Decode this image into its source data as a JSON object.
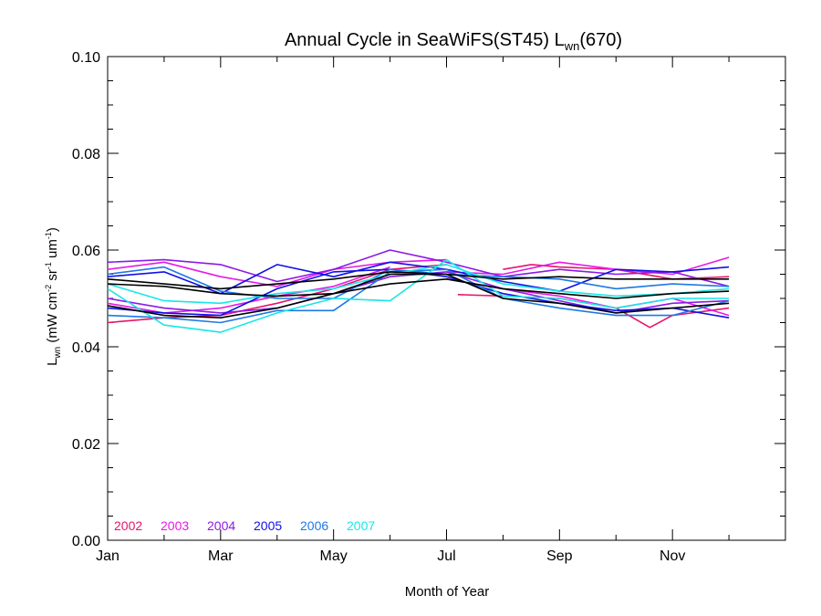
{
  "chart_data": {
    "type": "line",
    "title_main": "Annual Cycle in SeaWiFS(ST45) L",
    "title_sub": "wn",
    "title_tail": "(670)",
    "ylabel_main": "L",
    "ylabel_sub": "wn",
    "ylabel_unit_1": " (mW cm",
    "ylabel_sup_1": "-2",
    "ylabel_unit_2": " sr",
    "ylabel_sup_2": "-1",
    "ylabel_unit_3": " um",
    "ylabel_sup_3": "-1",
    "ylabel_unit_4": ")",
    "xlabel": "Month of Year",
    "ylim": [
      0.0,
      0.1
    ],
    "xlim": [
      1,
      13
    ],
    "y_ticks": [
      "0.00",
      "0.02",
      "0.04",
      "0.06",
      "0.08",
      "0.10"
    ],
    "x_ticks": [
      {
        "label": "Jan",
        "month": 1
      },
      {
        "label": "Mar",
        "month": 3
      },
      {
        "label": "May",
        "month": 5
      },
      {
        "label": "Jul",
        "month": 7
      },
      {
        "label": "Sep",
        "month": 9
      },
      {
        "label": "Nov",
        "month": 11
      }
    ],
    "grid": false,
    "legend_placement": "bottom-left",
    "legend": [
      {
        "label": "2002",
        "color": "#e6156e"
      },
      {
        "label": "2003",
        "color": "#e619e6"
      },
      {
        "label": "2004",
        "color": "#8c1ae6"
      },
      {
        "label": "2005",
        "color": "#1010e6"
      },
      {
        "label": "2006",
        "color": "#1e78e6"
      },
      {
        "label": "2007",
        "color": "#19e6e6"
      }
    ],
    "series": [
      {
        "color": "#e6156e",
        "x": [
          7.2,
          8,
          9,
          10,
          10.6,
          11,
          12
        ],
        "values": [
          0.0508,
          0.0505,
          0.05,
          0.048,
          0.044,
          0.0465,
          0.048
        ]
      },
      {
        "color": "#e6156e",
        "x": [
          8,
          8.5,
          9,
          10,
          11,
          12
        ],
        "values": [
          0.056,
          0.057,
          0.0565,
          0.056,
          0.054,
          0.0545
        ]
      },
      {
        "color": "#e6156e",
        "x": [
          1,
          2,
          3,
          4,
          5,
          6,
          7
        ],
        "values": [
          0.045,
          0.046,
          0.0465,
          0.049,
          0.052,
          0.056,
          0.057
        ]
      },
      {
        "color": "#e619e6",
        "x": [
          1,
          2,
          3,
          4,
          5,
          6,
          7
        ],
        "values": [
          0.056,
          0.0575,
          0.0545,
          0.0525,
          0.056,
          0.0575,
          0.058
        ]
      },
      {
        "color": "#e619e6",
        "x": [
          7,
          8,
          9,
          10,
          11,
          12
        ],
        "values": [
          0.0555,
          0.055,
          0.0575,
          0.056,
          0.055,
          0.0585
        ]
      },
      {
        "color": "#e619e6",
        "x": [
          7,
          8,
          9,
          10,
          11,
          12
        ],
        "values": [
          0.054,
          0.052,
          0.0505,
          0.048,
          0.05,
          0.0465
        ]
      },
      {
        "color": "#e619e6",
        "x": [
          1,
          2,
          3,
          4,
          5,
          6
        ],
        "values": [
          0.049,
          0.047,
          0.048,
          0.0505,
          0.0525,
          0.0565
        ]
      },
      {
        "color": "#8c1ae6",
        "x": [
          1,
          2,
          3,
          4,
          5,
          6,
          7,
          8,
          9,
          10,
          11,
          12
        ],
        "values": [
          0.0575,
          0.058,
          0.057,
          0.0535,
          0.056,
          0.06,
          0.0575,
          0.0545,
          0.056,
          0.055,
          0.0555,
          0.0525
        ]
      },
      {
        "color": "#8c1ae6",
        "x": [
          1,
          2,
          3,
          4,
          5,
          6,
          7,
          8,
          9,
          10,
          11,
          12
        ],
        "values": [
          0.05,
          0.048,
          0.047,
          0.048,
          0.051,
          0.0545,
          0.0555,
          0.052,
          0.0495,
          0.047,
          0.049,
          0.0495
        ]
      },
      {
        "color": "#1010e6",
        "x": [
          1,
          2,
          3,
          4,
          5,
          6,
          7,
          8,
          9,
          10,
          11,
          12
        ],
        "values": [
          0.0545,
          0.0555,
          0.051,
          0.057,
          0.0545,
          0.0575,
          0.056,
          0.0535,
          0.0515,
          0.056,
          0.0555,
          0.0565
        ]
      },
      {
        "color": "#1010e6",
        "x": [
          1,
          2,
          3,
          4,
          5,
          6,
          7,
          8,
          9,
          10,
          11,
          12
        ],
        "values": [
          0.048,
          0.047,
          0.0465,
          0.052,
          0.0555,
          0.056,
          0.0545,
          0.051,
          0.049,
          0.0475,
          0.048,
          0.046
        ]
      },
      {
        "color": "#1e78e6",
        "x": [
          1,
          2,
          3,
          4,
          5,
          6,
          7,
          8,
          9,
          10,
          11,
          12
        ],
        "values": [
          0.0465,
          0.046,
          0.045,
          0.0475,
          0.0475,
          0.0555,
          0.056,
          0.05,
          0.048,
          0.0465,
          0.0465,
          0.0495
        ]
      },
      {
        "color": "#1e78e6",
        "x": [
          1,
          2,
          3,
          4,
          5,
          6,
          7,
          8,
          9,
          10,
          11,
          12
        ],
        "values": [
          0.055,
          0.0565,
          0.0515,
          0.05,
          0.05,
          0.056,
          0.055,
          0.0545,
          0.054,
          0.052,
          0.053,
          0.0525
        ]
      },
      {
        "color": "#19e6e6",
        "x": [
          1,
          2,
          3,
          4,
          5,
          6,
          7,
          8,
          9,
          10,
          11,
          12
        ],
        "values": [
          0.052,
          0.0445,
          0.043,
          0.047,
          0.05,
          0.0495,
          0.058,
          0.0505,
          0.05,
          0.048,
          0.05,
          0.05
        ]
      },
      {
        "color": "#19e6e6",
        "x": [
          1,
          2,
          3,
          4,
          5,
          6,
          7,
          8,
          9,
          10,
          11,
          12
        ],
        "values": [
          0.053,
          0.0495,
          0.049,
          0.051,
          0.052,
          0.055,
          0.057,
          0.053,
          0.0515,
          0.0505,
          0.051,
          0.052
        ]
      },
      {
        "color": "#000000",
        "x": [
          1,
          2,
          3,
          4,
          5,
          6,
          7,
          8,
          9,
          10,
          11,
          12
        ],
        "values": [
          0.053,
          0.0525,
          0.051,
          0.0505,
          0.051,
          0.053,
          0.054,
          0.052,
          0.051,
          0.05,
          0.051,
          0.0515
        ]
      },
      {
        "color": "#000000",
        "x": [
          1,
          2,
          3,
          4,
          5,
          6,
          7,
          8,
          9,
          10,
          11,
          12
        ],
        "values": [
          0.0485,
          0.0465,
          0.046,
          0.048,
          0.051,
          0.055,
          0.055,
          0.05,
          0.049,
          0.047,
          0.048,
          0.049
        ]
      },
      {
        "color": "#000000",
        "x": [
          1,
          2,
          3,
          4,
          5,
          6,
          7,
          8,
          9,
          10,
          11,
          12
        ],
        "values": [
          0.054,
          0.053,
          0.052,
          0.053,
          0.054,
          0.0555,
          0.055,
          0.054,
          0.0545,
          0.054,
          0.054,
          0.054
        ]
      }
    ]
  }
}
